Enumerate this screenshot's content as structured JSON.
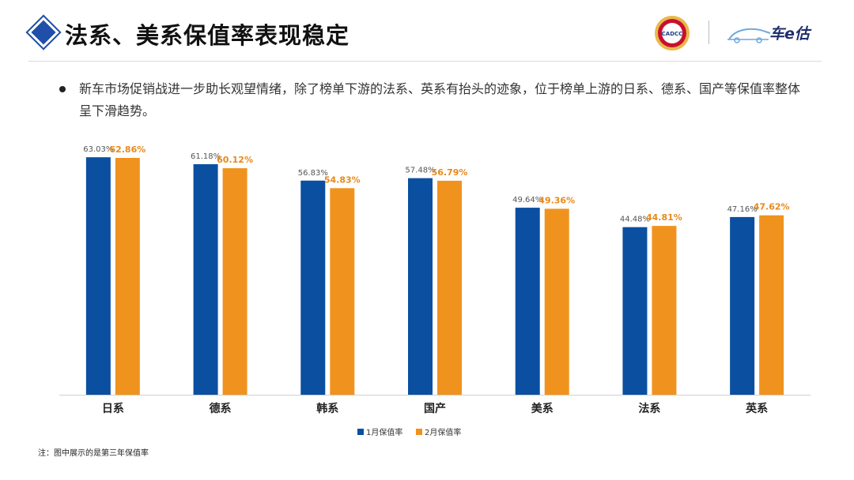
{
  "header": {
    "title": "法系、美系保值率表现稳定",
    "logo_cadcc_text": "CADCC",
    "logo_cheg_text": "车e估"
  },
  "description": "新车市场促销战进一步助长观望情绪，除了榜单下游的法系、英系有抬头的迹象，位于榜单上游的日系、德系、国产等保值率整体呈下滑趋势。",
  "note": "注：图中展示的是第三年保值率",
  "colors": {
    "accent": "#1f4fa8",
    "series1": "#0b4fa0",
    "series2": "#f0931e",
    "label2": "#e8891a"
  },
  "chart_data": {
    "type": "bar",
    "categories": [
      "日系",
      "德系",
      "韩系",
      "国产",
      "美系",
      "法系",
      "英系"
    ],
    "series": [
      {
        "name": "1月保值率",
        "values": [
          63.03,
          61.18,
          56.83,
          57.48,
          49.64,
          44.48,
          47.16
        ],
        "labels": [
          "63.03%",
          "61.18%",
          "56.83%",
          "57.48%",
          "49.64%",
          "44.48%",
          "47.16%"
        ]
      },
      {
        "name": "2月保值率",
        "values": [
          62.86,
          60.12,
          54.83,
          56.79,
          49.36,
          44.81,
          47.62
        ],
        "labels": [
          "62.86%",
          "60.12%",
          "54.83%",
          "56.79%",
          "49.36%",
          "44.81%",
          "47.62%"
        ]
      }
    ],
    "ylim": [
      0,
      66
    ],
    "grid": false,
    "legend_position": "bottom-center"
  }
}
